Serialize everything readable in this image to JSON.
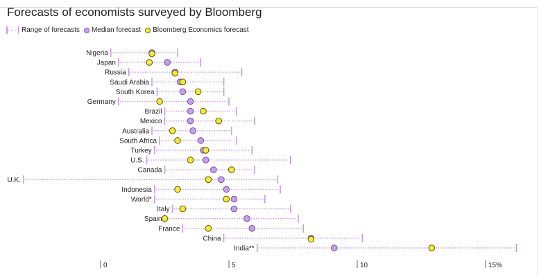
{
  "chart_data": {
    "type": "dot-range",
    "title": "Forecasts of economists surveyed by Bloomberg",
    "legend": {
      "range": "Range of forecasts",
      "median": "Median forecast",
      "be": "Bloomberg Economics forecast",
      "placement": "top-left"
    },
    "colors": {
      "range": "#c79be3",
      "median_fill": "#c4a0e8",
      "median_stroke": "#7a4ea8",
      "be_fill": "#f5ea3b",
      "be_stroke": "#5e5600"
    },
    "xlabel": "",
    "ylabel": "",
    "xlim": [
      -3.2,
      17
    ],
    "x_ticks": [
      {
        "value": 0,
        "label": "0"
      },
      {
        "value": 5,
        "label": "5"
      },
      {
        "value": 10,
        "label": "10"
      },
      {
        "value": 15,
        "label": "15%"
      }
    ],
    "grid": false,
    "rows": [
      {
        "country": "Nigeria",
        "min": 0.4,
        "max": 3.0,
        "median": 2.0,
        "be": 2.0
      },
      {
        "country": "Japan",
        "min": 0.7,
        "max": 3.9,
        "median": 2.6,
        "be": 1.9
      },
      {
        "country": "Russia",
        "min": 1.1,
        "max": 5.5,
        "median": 2.9,
        "be": 2.9
      },
      {
        "country": "Saudi Arabia",
        "min": 2.0,
        "max": 4.8,
        "median": 3.1,
        "be": 3.2
      },
      {
        "country": "South Korea",
        "min": 2.2,
        "max": 4.8,
        "median": 3.2,
        "be": 3.8
      },
      {
        "country": "Germany",
        "min": 0.7,
        "max": 5.0,
        "median": 3.5,
        "be": 2.3
      },
      {
        "country": "Brazil",
        "min": 2.5,
        "max": 5.3,
        "median": 3.5,
        "be": 4.0
      },
      {
        "country": "Mexico",
        "min": 2.5,
        "max": 6.0,
        "median": 3.5,
        "be": 4.6
      },
      {
        "country": "Australia",
        "min": 2.0,
        "max": 5.1,
        "median": 3.6,
        "be": 2.8
      },
      {
        "country": "South Africa",
        "min": 2.3,
        "max": 5.3,
        "median": 3.9,
        "be": 3.0
      },
      {
        "country": "Turkey",
        "min": 2.1,
        "max": 5.9,
        "median": 4.0,
        "be": 4.1
      },
      {
        "country": "U.S.",
        "min": 1.8,
        "max": 7.4,
        "median": 4.1,
        "be": 3.5
      },
      {
        "country": "Canada",
        "min": 2.5,
        "max": 6.0,
        "median": 4.4,
        "be": 5.1
      },
      {
        "country": "U.K.",
        "min": -3.0,
        "max": 6.9,
        "median": 4.7,
        "be": 4.2
      },
      {
        "country": "Indonesia",
        "min": 2.1,
        "max": 7.0,
        "median": 4.9,
        "be": 3.0
      },
      {
        "country": "World*",
        "min": 2.1,
        "max": 6.4,
        "median": 5.2,
        "be": 4.9
      },
      {
        "country": "Italy",
        "min": 2.8,
        "max": 7.4,
        "median": 5.2,
        "be": 3.2
      },
      {
        "country": "Spain",
        "min": 2.5,
        "max": 7.7,
        "median": 5.7,
        "be": 2.5
      },
      {
        "country": "France",
        "min": 3.2,
        "max": 7.9,
        "median": 5.9,
        "be": 4.2
      },
      {
        "country": "China",
        "min": 4.8,
        "max": 10.2,
        "median": 8.2,
        "be": 8.2
      },
      {
        "country": "India**",
        "min": 6.1,
        "max": 16.2,
        "median": 9.1,
        "be": 12.9
      }
    ]
  }
}
